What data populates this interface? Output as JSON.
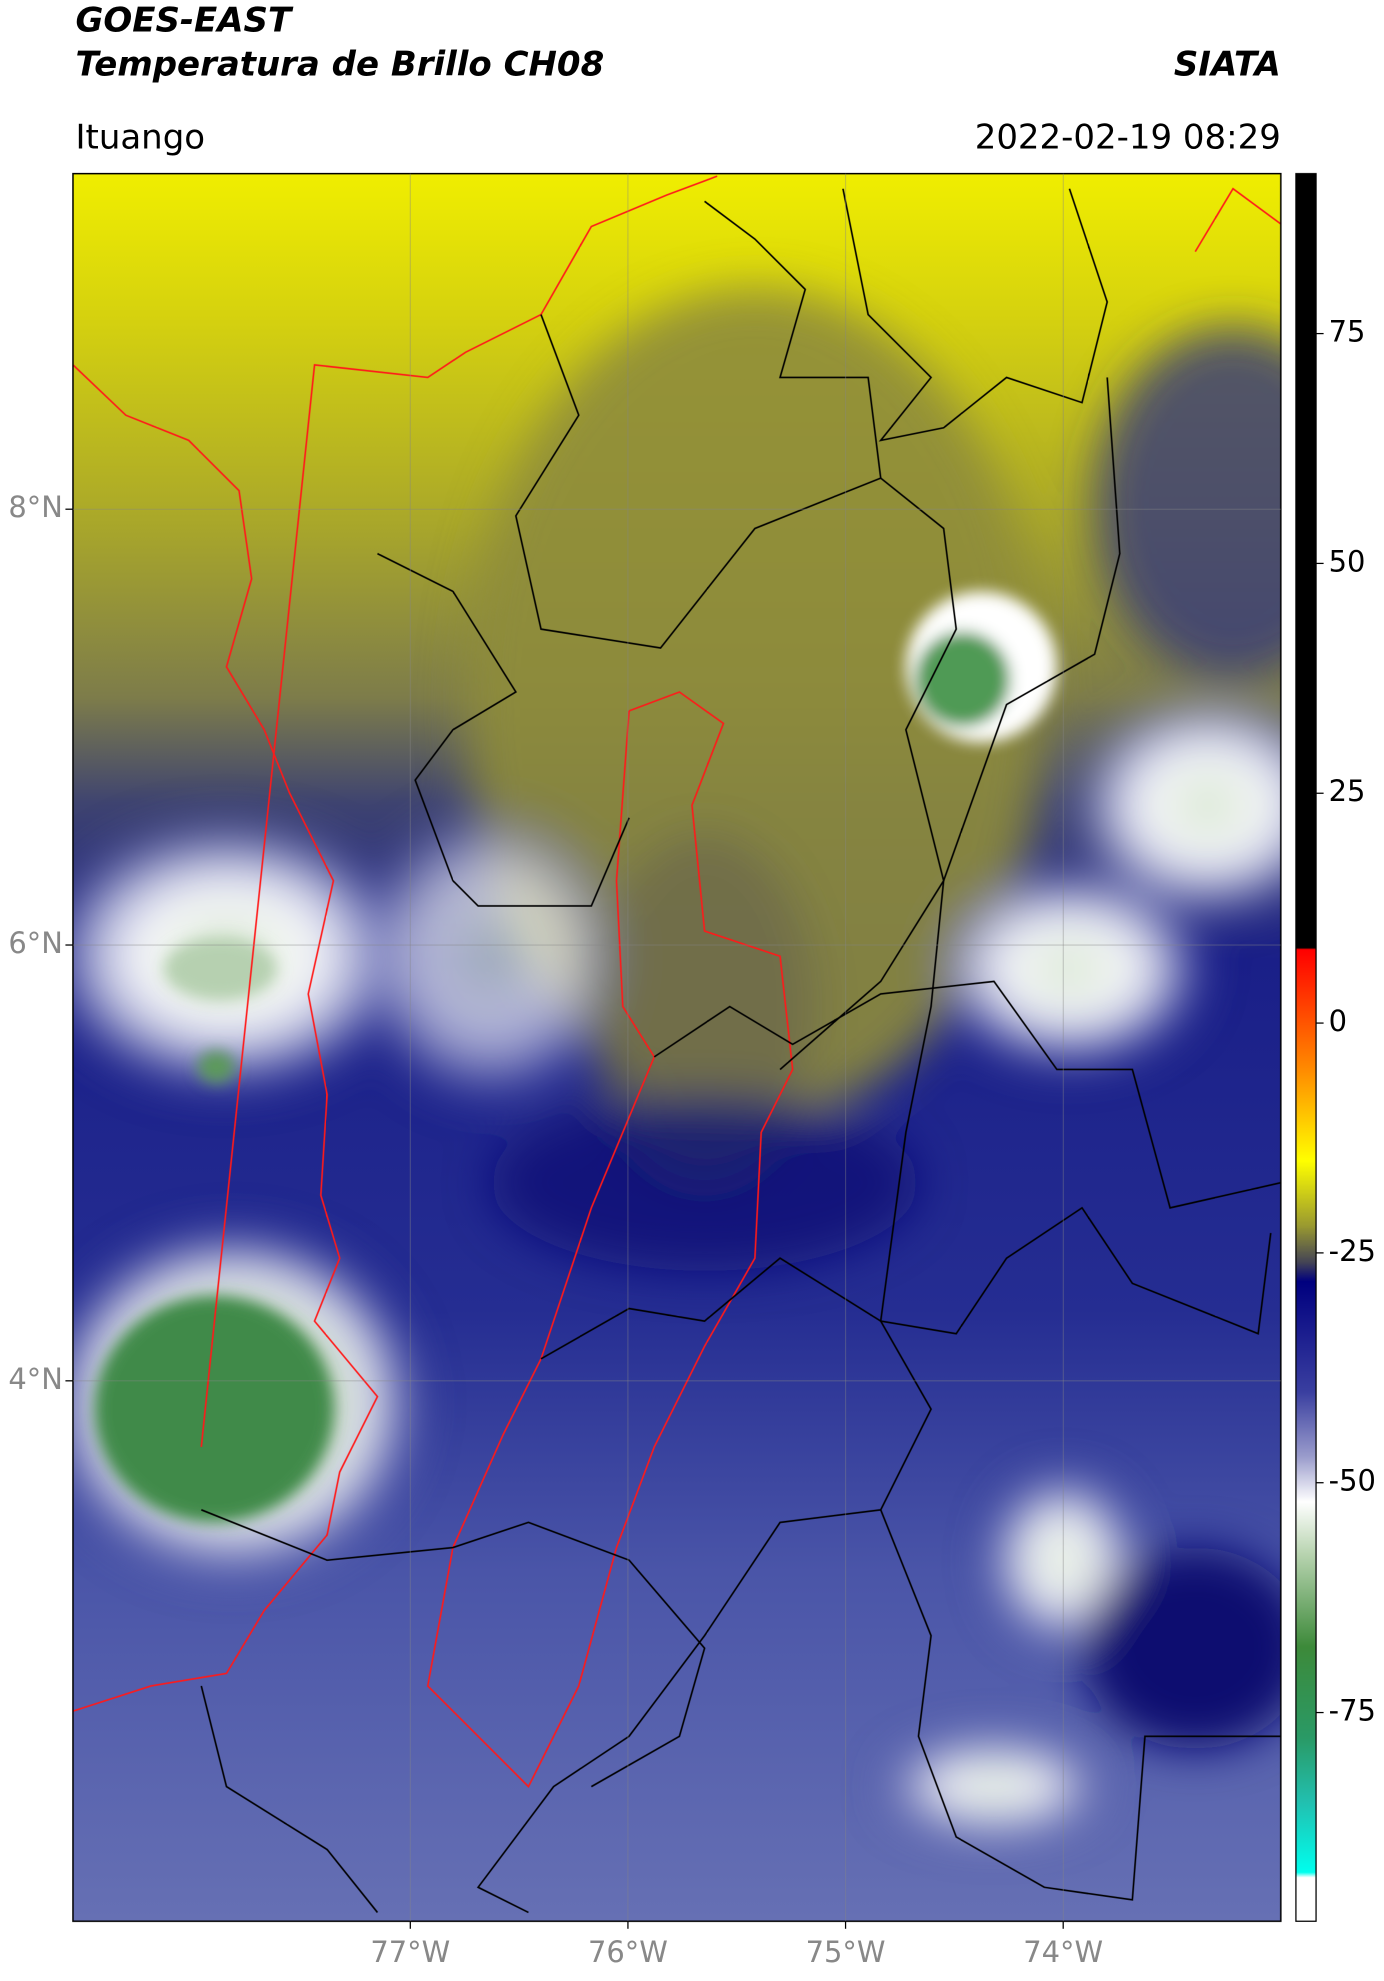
{
  "chart_data": {
    "type": "map",
    "title": "GOES-EAST",
    "subtitle": "Temperatura de Brillo CH08",
    "source": "SIATA",
    "location": "Ituango",
    "datetime": "2022-02-19 08:29",
    "grid": true,
    "xlim": [
      -78.55,
      -73.0
    ],
    "ylim": [
      1.52,
      9.54
    ],
    "xticks": [
      {
        "value": -77,
        "label": "77°W"
      },
      {
        "value": -76,
        "label": "76°W"
      },
      {
        "value": -75,
        "label": "75°W"
      },
      {
        "value": -74,
        "label": "74°W"
      }
    ],
    "yticks": [
      {
        "value": 8,
        "label": "8°N"
      },
      {
        "value": 6,
        "label": "6°N"
      },
      {
        "value": 4,
        "label": "4°N"
      }
    ],
    "colorbar": {
      "lim": [
        -97.7,
        92.4
      ],
      "ticks": [
        75,
        50,
        25,
        0,
        -25,
        -50,
        -75
      ]
    }
  }
}
